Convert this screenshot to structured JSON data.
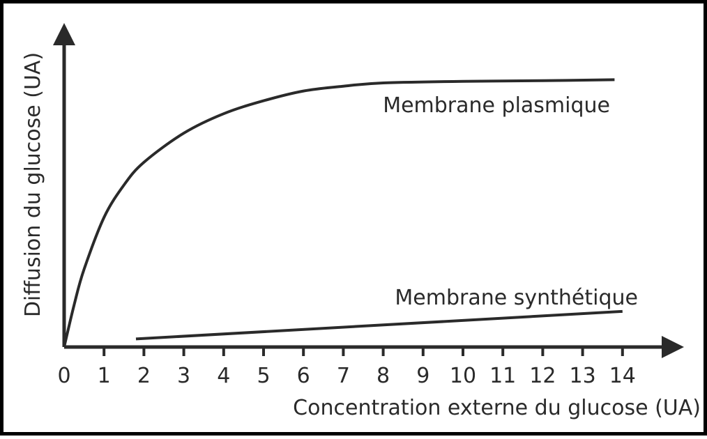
{
  "chart_data": {
    "type": "line",
    "xlabel": "Concentration externe du glucose (UA)",
    "ylabel": "Diffusion du glucose (UA)",
    "xlim": [
      0,
      14
    ],
    "x_ticks": [
      "0",
      "1",
      "2",
      "3",
      "4",
      "5",
      "6",
      "7",
      "8",
      "9",
      "10",
      "11",
      "12",
      "13",
      "14"
    ],
    "ylim": [
      0,
      10
    ],
    "grid": false,
    "legend": "none",
    "series": [
      {
        "name": "Membrane plasmique",
        "x": [
          0,
          0.25,
          0.5,
          1,
          1.5,
          2,
          3,
          4,
          5,
          6,
          7,
          8,
          10,
          12,
          13.8
        ],
        "y": [
          0,
          1.3,
          2.4,
          4.0,
          5.0,
          5.7,
          6.6,
          7.2,
          7.6,
          7.9,
          8.05,
          8.15,
          8.2,
          8.22,
          8.25
        ]
      },
      {
        "name": "Membrane synthétique",
        "x": [
          1.8,
          14
        ],
        "y": [
          0.25,
          1.1
        ]
      }
    ]
  }
}
